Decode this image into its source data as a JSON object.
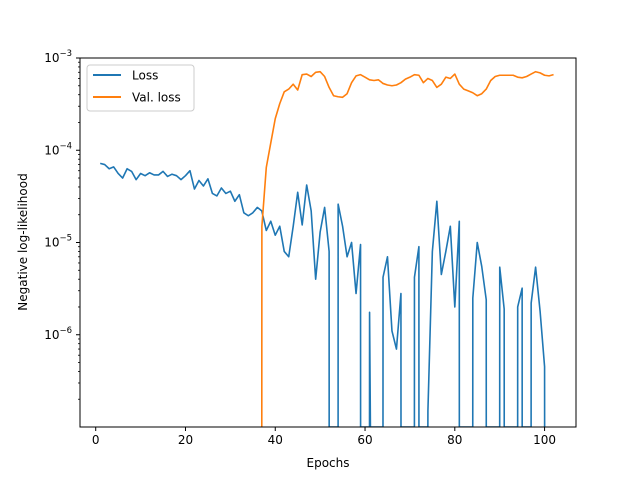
{
  "chart_data": {
    "type": "line",
    "title": "",
    "xlabel": "Epochs",
    "ylabel": "Negative log-likelihood",
    "xlim": [
      -3.5,
      107
    ],
    "ylim": [
      1e-07,
      0.001
    ],
    "yscale": "log",
    "grid": false,
    "legend_position": "top-left",
    "x_ticks": [
      0,
      20,
      40,
      60,
      80,
      100
    ],
    "y_ticks": [
      {
        "value": 1e-06,
        "base": "10",
        "exp": "−6"
      },
      {
        "value": 1e-05,
        "base": "10",
        "exp": "−5"
      },
      {
        "value": 0.0001,
        "base": "10",
        "exp": "−4"
      },
      {
        "value": 0.001,
        "base": "10",
        "exp": "−3"
      }
    ],
    "series": [
      {
        "name": "Loss",
        "color": "#1f77b4",
        "points": [
          [
            1,
            7.2e-05
          ],
          [
            2,
            7e-05
          ],
          [
            3,
            6.3e-05
          ],
          [
            4,
            6.6e-05
          ],
          [
            5,
            5.6e-05
          ],
          [
            6,
            5e-05
          ],
          [
            7,
            6.3e-05
          ],
          [
            8,
            5.9e-05
          ],
          [
            9,
            4.8e-05
          ],
          [
            10,
            5.6e-05
          ],
          [
            11,
            5.3e-05
          ],
          [
            12,
            5.7e-05
          ],
          [
            13,
            5.4e-05
          ],
          [
            14,
            5.4e-05
          ],
          [
            15,
            5.9e-05
          ],
          [
            16,
            5.2e-05
          ],
          [
            17,
            5.5e-05
          ],
          [
            18,
            5.3e-05
          ],
          [
            19,
            4.8e-05
          ],
          [
            20,
            5.3e-05
          ],
          [
            21,
            6e-05
          ],
          [
            22,
            3.8e-05
          ],
          [
            23,
            4.7e-05
          ],
          [
            24,
            4.1e-05
          ],
          [
            25,
            4.9e-05
          ],
          [
            26,
            3.4e-05
          ],
          [
            27,
            3.2e-05
          ],
          [
            28,
            3.9e-05
          ],
          [
            29,
            3.4e-05
          ],
          [
            30,
            3.6e-05
          ],
          [
            31,
            2.8e-05
          ],
          [
            32,
            3.3e-05
          ],
          [
            33,
            2.1e-05
          ],
          [
            34,
            1.95e-05
          ],
          [
            35,
            2.1e-05
          ],
          [
            36,
            2.4e-05
          ],
          [
            37,
            2.2e-05
          ],
          [
            38,
            1.35e-05
          ],
          [
            39,
            1.7e-05
          ],
          [
            40,
            1.2e-05
          ],
          [
            41,
            1.5e-05
          ],
          [
            42,
            8e-06
          ],
          [
            43,
            7e-06
          ],
          [
            44,
            1.5e-05
          ],
          [
            45,
            3.5e-05
          ],
          [
            46,
            1.55e-05
          ],
          [
            47,
            4.2e-05
          ],
          [
            48,
            2.2e-05
          ],
          [
            49,
            4e-06
          ],
          [
            50,
            1.3e-05
          ],
          [
            51,
            2.4e-05
          ],
          [
            52,
            8e-06
          ],
          [
            52.01,
            1e-07
          ],
          [
            54,
            1e-07
          ],
          [
            54.01,
            2.6e-05
          ],
          [
            55,
            1.5e-05
          ],
          [
            56,
            7e-06
          ],
          [
            57,
            1e-05
          ],
          [
            58,
            2.8e-06
          ],
          [
            59,
            9.5e-06
          ],
          [
            59.01,
            1e-07
          ],
          [
            61,
            1e-07
          ],
          [
            61.01,
            1.75e-06
          ],
          [
            61.2,
            1e-07
          ],
          [
            64,
            1e-07
          ],
          [
            64.01,
            4.2e-06
          ],
          [
            65,
            7e-06
          ],
          [
            66,
            1.1e-06
          ],
          [
            67,
            7e-07
          ],
          [
            68,
            2.8e-06
          ],
          [
            68.01,
            1e-07
          ],
          [
            71,
            1e-07
          ],
          [
            71.01,
            4.2e-06
          ],
          [
            72,
            9e-06
          ],
          [
            72.01,
            1e-07
          ],
          [
            74,
            1e-07
          ],
          [
            74.01,
            1.5e-07
          ],
          [
            75,
            8e-06
          ],
          [
            76,
            2.8e-05
          ],
          [
            77,
            4.5e-06
          ],
          [
            78,
            8e-06
          ],
          [
            79,
            1.5e-05
          ],
          [
            80,
            2e-06
          ],
          [
            81,
            1.7e-05
          ],
          [
            81.01,
            1e-07
          ],
          [
            84,
            1e-07
          ],
          [
            84.01,
            2.5e-06
          ],
          [
            85,
            1e-05
          ],
          [
            86,
            5.5e-06
          ],
          [
            87,
            2.4e-06
          ],
          [
            87.01,
            1e-07
          ],
          [
            90,
            1e-07
          ],
          [
            90.01,
            5.4e-06
          ],
          [
            91,
            1.9e-06
          ],
          [
            91.01,
            1e-07
          ],
          [
            94,
            1e-07
          ],
          [
            94.01,
            2e-06
          ],
          [
            95,
            3.2e-06
          ],
          [
            95.01,
            1e-07
          ],
          [
            97,
            1e-07
          ],
          [
            97.01,
            2.2e-06
          ],
          [
            98,
            5.4e-06
          ],
          [
            99,
            1.8e-06
          ],
          [
            100,
            4.5e-07
          ],
          [
            100.01,
            1e-07
          ]
        ]
      },
      {
        "name": "Val. loss",
        "color": "#ff7f0e",
        "points": [
          [
            37,
            1e-07
          ],
          [
            37.02,
            1.5e-05
          ],
          [
            38,
            6.5e-05
          ],
          [
            39,
            0.00012
          ],
          [
            40,
            0.00022
          ],
          [
            41,
            0.00032
          ],
          [
            42,
            0.00043
          ],
          [
            43,
            0.00046
          ],
          [
            44,
            0.00052
          ],
          [
            45,
            0.00045
          ],
          [
            46,
            0.00066
          ],
          [
            47,
            0.00067
          ],
          [
            48,
            0.00063
          ],
          [
            49,
            0.0007
          ],
          [
            50,
            0.00071
          ],
          [
            51,
            0.00063
          ],
          [
            52,
            0.00048
          ],
          [
            53,
            0.00039
          ],
          [
            54,
            0.00038
          ],
          [
            55,
            0.000375
          ],
          [
            56,
            0.00041
          ],
          [
            57,
            0.00054
          ],
          [
            58,
            0.00064
          ],
          [
            59,
            0.00066
          ],
          [
            60,
            0.00062
          ],
          [
            61,
            0.00058
          ],
          [
            62,
            0.00057
          ],
          [
            63,
            0.00058
          ],
          [
            64,
            0.00053
          ],
          [
            65,
            0.00051
          ],
          [
            66,
            0.0005
          ],
          [
            67,
            0.00051
          ],
          [
            68,
            0.00054
          ],
          [
            69,
            0.00059
          ],
          [
            70,
            0.00062
          ],
          [
            71,
            0.00066
          ],
          [
            72,
            0.00065
          ],
          [
            73,
            0.00054
          ],
          [
            74,
            0.0006
          ],
          [
            75,
            0.00057
          ],
          [
            76,
            0.00048
          ],
          [
            77,
            0.00052
          ],
          [
            78,
            0.00062
          ],
          [
            79,
            0.0006
          ],
          [
            80,
            0.00067
          ],
          [
            81,
            0.00052
          ],
          [
            82,
            0.00046
          ],
          [
            83,
            0.00044
          ],
          [
            84,
            0.00042
          ],
          [
            85,
            0.00039
          ],
          [
            86,
            0.00041
          ],
          [
            87,
            0.00046
          ],
          [
            88,
            0.00057
          ],
          [
            89,
            0.00063
          ],
          [
            90,
            0.00065
          ],
          [
            91,
            0.00065
          ],
          [
            92,
            0.00065
          ],
          [
            93,
            0.00065
          ],
          [
            94,
            0.00062
          ],
          [
            95,
            0.00061
          ],
          [
            96,
            0.00063
          ],
          [
            97,
            0.00067
          ],
          [
            98,
            0.00071
          ],
          [
            99,
            0.00069
          ],
          [
            100,
            0.00065
          ],
          [
            101,
            0.00064
          ],
          [
            102,
            0.00066
          ]
        ]
      }
    ]
  }
}
